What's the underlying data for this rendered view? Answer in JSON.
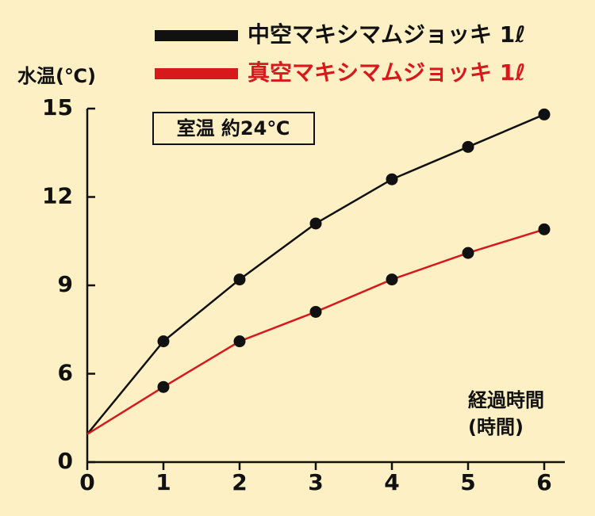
{
  "chart_data": {
    "type": "line",
    "y_label": "水温(℃)",
    "x_label": "経過時間\n(時間)",
    "annotation": "室温 約24℃",
    "x": [
      0,
      1,
      2,
      3,
      4,
      5,
      6
    ],
    "series": [
      {
        "name": "中空マキシマムジョッキ 1ℓ",
        "color": "#111111",
        "values": [
          1.9,
          7.1,
          9.2,
          11.1,
          12.6,
          13.7,
          14.8
        ]
      },
      {
        "name": "真空マキシマムジョッキ 1ℓ",
        "color": "#d7191c",
        "values": [
          1.9,
          5.1,
          7.1,
          8.1,
          9.2,
          10.1,
          10.9
        ]
      }
    ],
    "xlim": [
      0,
      6
    ],
    "xticks": [
      0,
      1,
      2,
      3,
      4,
      5,
      6
    ],
    "ylim": [
      0,
      15
    ],
    "yticks": [
      0,
      6,
      9,
      12,
      15
    ],
    "marker_color": "#111111"
  }
}
